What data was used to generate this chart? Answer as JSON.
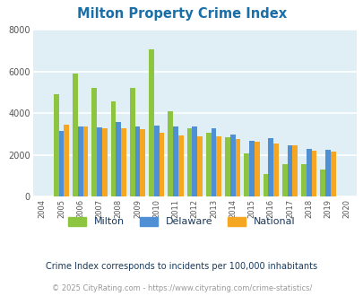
{
  "title": "Milton Property Crime Index",
  "title_color": "#1a6fa8",
  "years": [
    2004,
    2005,
    2006,
    2007,
    2008,
    2009,
    2010,
    2011,
    2012,
    2013,
    2014,
    2015,
    2016,
    2017,
    2018,
    2019,
    2020
  ],
  "bar_years": [
    2005,
    2006,
    2007,
    2008,
    2009,
    2010,
    2011,
    2012,
    2013,
    2014,
    2015,
    2016,
    2017,
    2018,
    2019
  ],
  "milton": [
    4900,
    5900,
    5200,
    4550,
    5200,
    7050,
    4100,
    3300,
    3050,
    2850,
    2100,
    1100,
    1550,
    1570,
    1300
  ],
  "delaware": [
    3150,
    3380,
    3320,
    3600,
    3380,
    3430,
    3380,
    3380,
    3280,
    3000,
    2700,
    2800,
    2450,
    2280,
    2230
  ],
  "national": [
    3450,
    3350,
    3300,
    3300,
    3250,
    3050,
    2950,
    2900,
    2900,
    2750,
    2620,
    2530,
    2480,
    2200,
    2150
  ],
  "color_milton": "#8dc540",
  "color_delaware": "#4f8fd4",
  "color_national": "#f5a623",
  "ylim": [
    0,
    8000
  ],
  "yticks": [
    0,
    2000,
    4000,
    6000,
    8000
  ],
  "bg_color": "#e0eef5",
  "legend_labels": [
    "Milton",
    "Delaware",
    "National"
  ],
  "footnote1": "Crime Index corresponds to incidents per 100,000 inhabitants",
  "footnote2": "© 2025 CityRating.com - https://www.cityrating.com/crime-statistics/",
  "footnote1_color": "#1a3a5c",
  "footnote2_color": "#999999",
  "grid_color": "#ffffff",
  "bar_width": 0.27
}
